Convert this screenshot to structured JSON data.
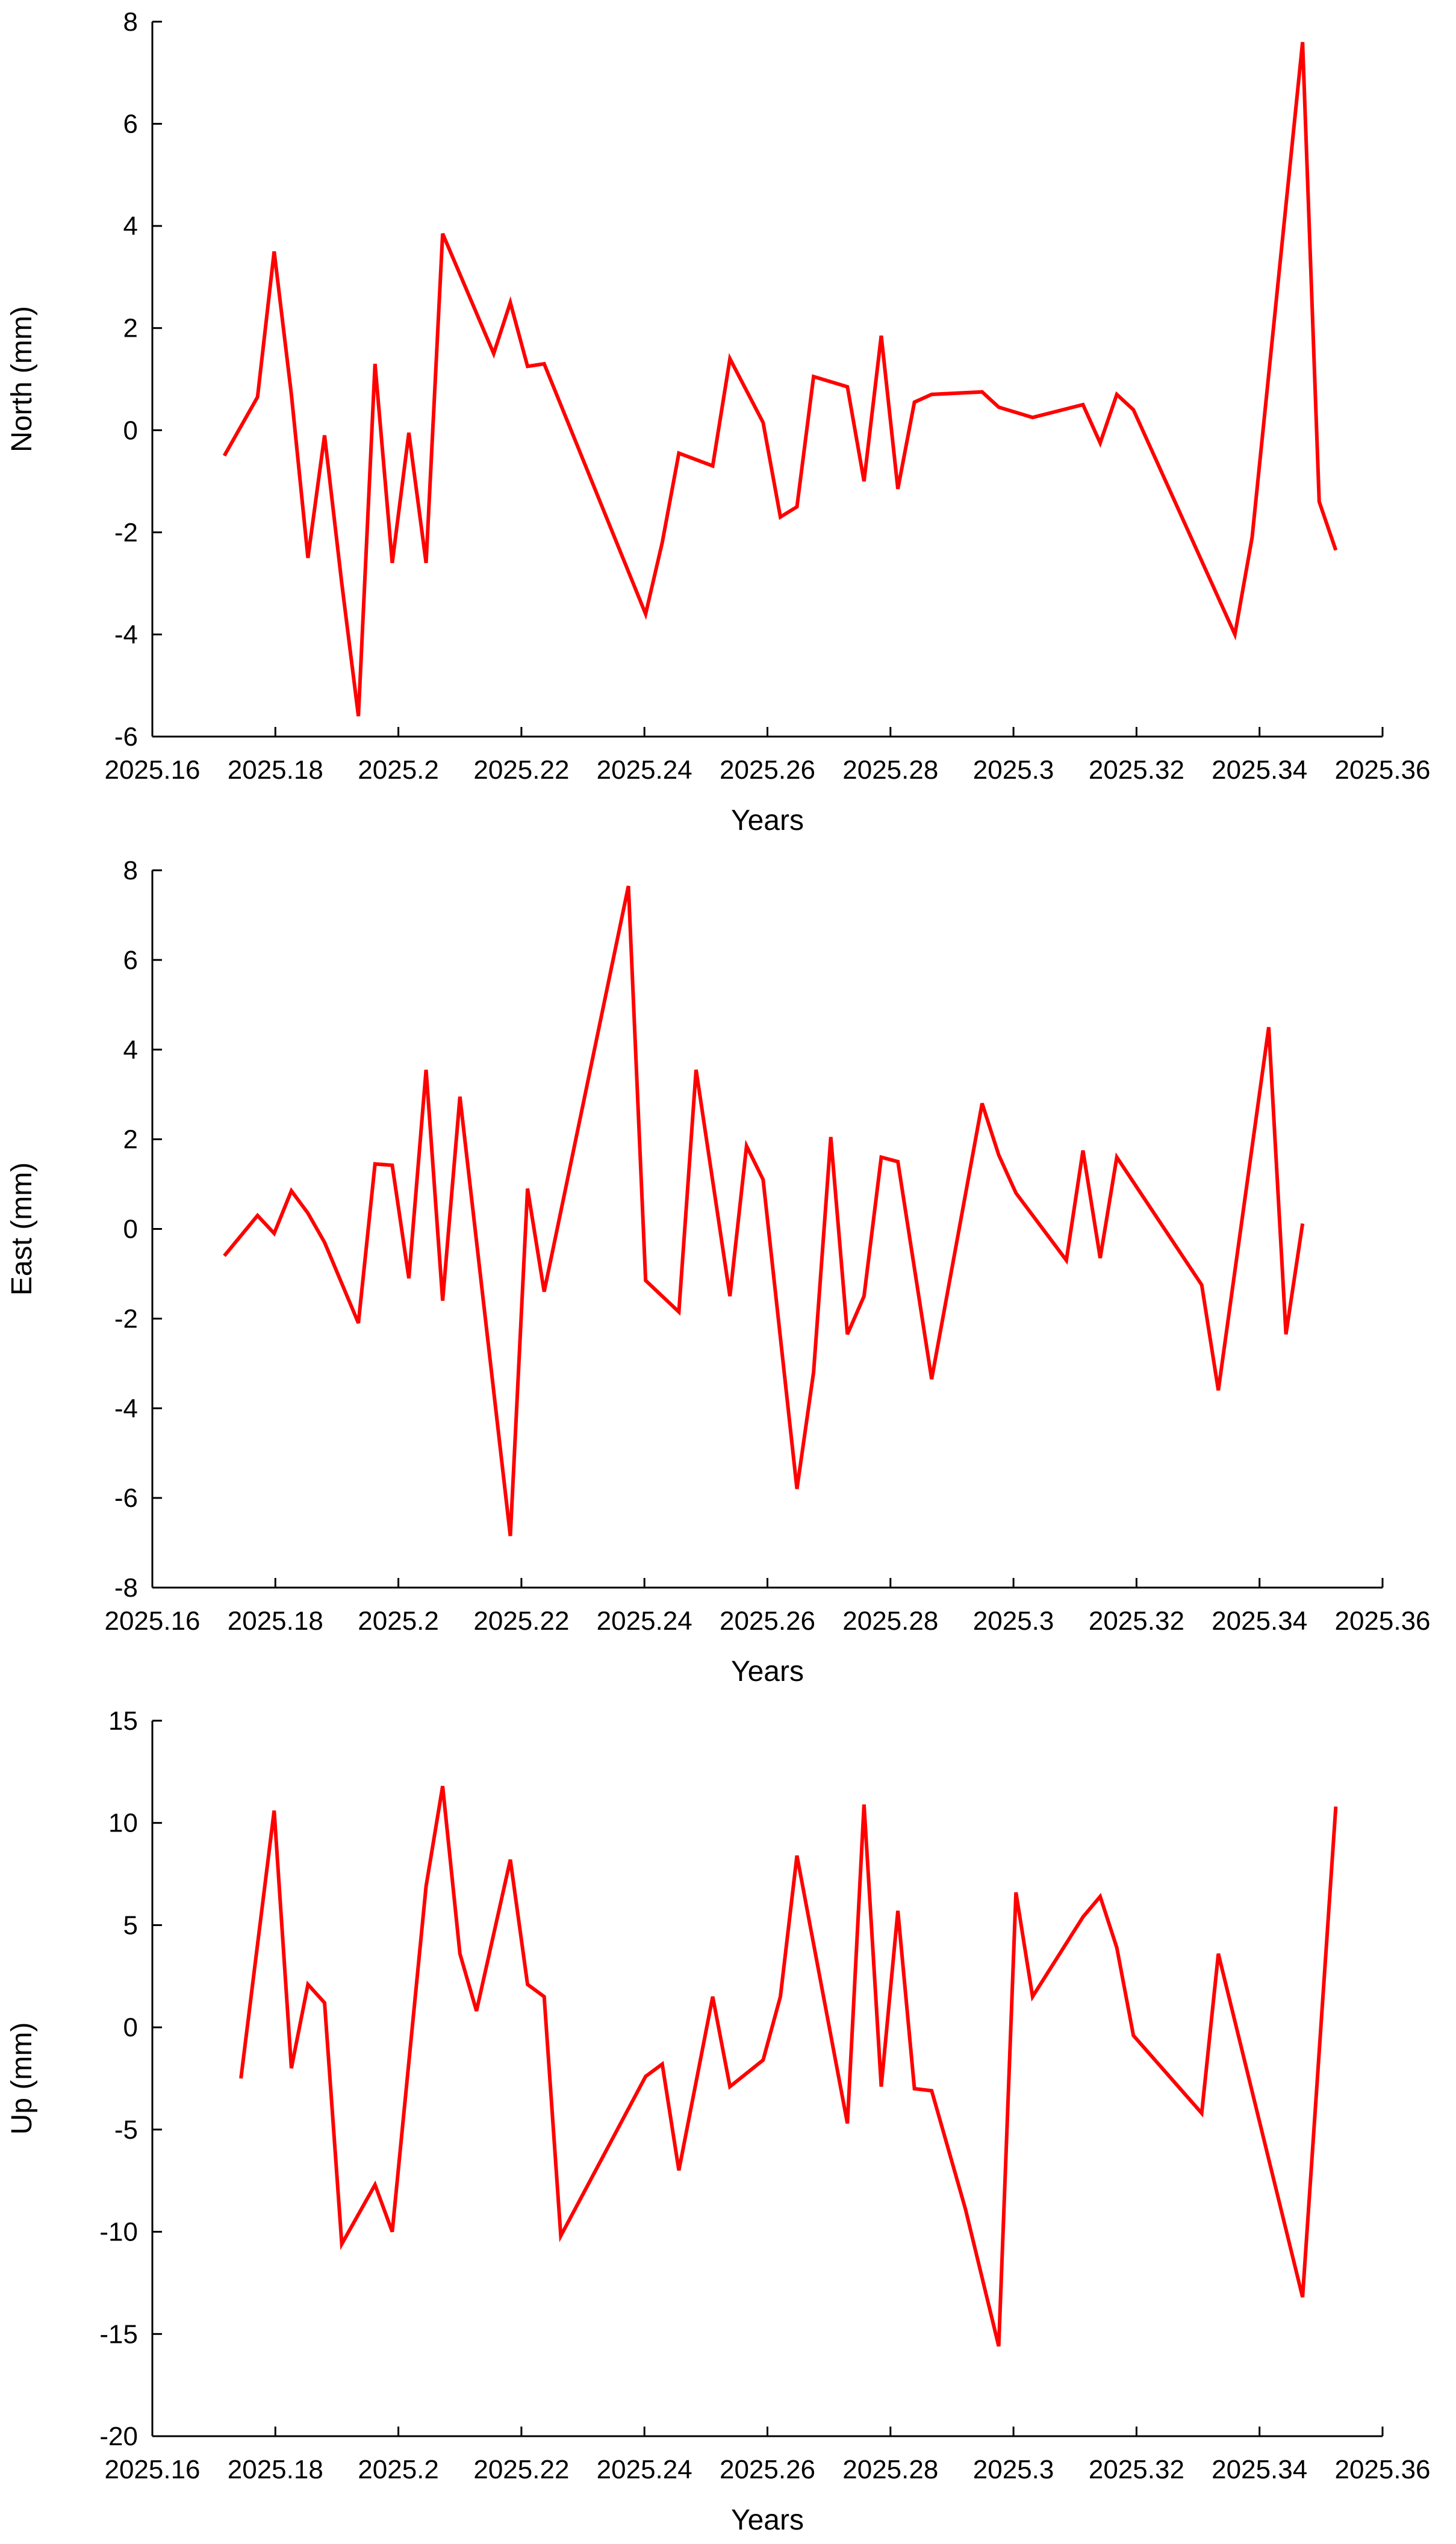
{
  "chart_data": [
    {
      "type": "line",
      "xlabel": "Years",
      "ylabel": "North (mm)",
      "xlim": [
        2025.16,
        2025.36
      ],
      "ylim": [
        -6,
        8
      ],
      "x_ticks": [
        2025.16,
        2025.18,
        2025.2,
        2025.22,
        2025.24,
        2025.26,
        2025.28,
        2025.3,
        2025.32,
        2025.34,
        2025.36
      ],
      "x_tick_labels": [
        "2025.16",
        "2025.18",
        "2025.2",
        "2025.22",
        "2025.24",
        "2025.26",
        "2025.28",
        "2025.3",
        "2025.32",
        "2025.34",
        "2025.36"
      ],
      "y_ticks": [
        -6,
        -4,
        -2,
        0,
        2,
        4,
        6,
        8
      ],
      "y_tick_labels": [
        "-6",
        "-4",
        "-2",
        "0",
        "2",
        "4",
        "6",
        "8"
      ],
      "line_color": "#ff0000",
      "series": [
        {
          "x": [
            2025.1717,
            2025.1771,
            2025.1798,
            2025.1826,
            2025.1853,
            2025.188,
            2025.1908,
            2025.1935,
            2025.1962,
            2025.199,
            2025.2017,
            2025.2045,
            2025.2072,
            2025.2155,
            2025.2182,
            2025.221,
            2025.2237,
            2025.2402,
            2025.2429,
            2025.2456,
            2025.2511,
            2025.2539,
            2025.2593,
            2025.2621,
            2025.2648,
            2025.2675,
            2025.273,
            2025.2757,
            2025.2785,
            2025.2812,
            2025.2839,
            2025.2867,
            2025.2949,
            2025.2976,
            2025.3031,
            2025.3113,
            2025.3141,
            2025.3168,
            2025.3195,
            2025.336,
            2025.3388,
            2025.347,
            2025.3497,
            2025.3524
          ],
          "y": [
            -0.5,
            0.65,
            3.5,
            0.7,
            -2.5,
            -0.1,
            -3.0,
            -5.6,
            1.3,
            -2.6,
            -0.05,
            -2.6,
            3.85,
            1.5,
            2.5,
            1.25,
            1.3,
            -3.6,
            -2.2,
            -0.45,
            -0.7,
            1.4,
            0.15,
            -1.7,
            -1.5,
            1.05,
            0.85,
            -1.0,
            1.85,
            -1.15,
            0.55,
            0.7,
            0.75,
            0.45,
            0.25,
            0.5,
            -0.25,
            0.7,
            0.4,
            -4.0,
            -2.1,
            7.6,
            -1.4,
            -2.35
          ]
        }
      ]
    },
    {
      "type": "line",
      "xlabel": "Years",
      "ylabel": "East (mm)",
      "xlim": [
        2025.16,
        2025.36
      ],
      "ylim": [
        -8,
        8
      ],
      "x_ticks": [
        2025.16,
        2025.18,
        2025.2,
        2025.22,
        2025.24,
        2025.26,
        2025.28,
        2025.3,
        2025.32,
        2025.34,
        2025.36
      ],
      "x_tick_labels": [
        "2025.16",
        "2025.18",
        "2025.2",
        "2025.22",
        "2025.24",
        "2025.26",
        "2025.28",
        "2025.3",
        "2025.32",
        "2025.34",
        "2025.36"
      ],
      "y_ticks": [
        -8,
        -6,
        -4,
        -2,
        0,
        2,
        4,
        6,
        8
      ],
      "y_tick_labels": [
        "-8",
        "-6",
        "-4",
        "-2",
        "0",
        "2",
        "4",
        "6",
        "8"
      ],
      "line_color": "#ff0000",
      "series": [
        {
          "x": [
            2025.1717,
            2025.1771,
            2025.1798,
            2025.1826,
            2025.1853,
            2025.188,
            2025.1935,
            2025.1962,
            2025.199,
            2025.2017,
            2025.2045,
            2025.2072,
            2025.21,
            2025.2182,
            2025.221,
            2025.2237,
            2025.2374,
            2025.2402,
            2025.2456,
            2025.2484,
            2025.2539,
            2025.2566,
            2025.2593,
            2025.2648,
            2025.2675,
            2025.2703,
            2025.273,
            2025.2757,
            2025.2785,
            2025.2812,
            2025.2867,
            2025.2949,
            2025.2976,
            2025.3004,
            2025.3086,
            2025.3113,
            2025.3141,
            2025.3168,
            2025.3306,
            2025.3333,
            2025.3415,
            2025.3443,
            2025.347
          ],
          "y": [
            -0.6,
            0.3,
            -0.1,
            0.85,
            0.35,
            -0.3,
            -2.1,
            1.45,
            1.42,
            -1.1,
            3.55,
            -1.6,
            2.95,
            -6.85,
            0.9,
            -1.4,
            7.65,
            -1.15,
            -1.85,
            3.55,
            -1.5,
            1.85,
            1.1,
            -5.8,
            -3.2,
            2.05,
            -2.35,
            -1.5,
            1.6,
            1.5,
            -3.35,
            2.8,
            1.65,
            0.8,
            -0.7,
            1.75,
            -0.65,
            1.6,
            -1.25,
            -3.6,
            4.5,
            -2.35,
            0.12
          ]
        }
      ]
    },
    {
      "type": "line",
      "xlabel": "Years",
      "ylabel": "Up (mm)",
      "xlim": [
        2025.16,
        2025.36
      ],
      "ylim": [
        -20,
        15
      ],
      "x_ticks": [
        2025.16,
        2025.18,
        2025.2,
        2025.22,
        2025.24,
        2025.26,
        2025.28,
        2025.3,
        2025.32,
        2025.34,
        2025.36
      ],
      "x_tick_labels": [
        "2025.16",
        "2025.18",
        "2025.2",
        "2025.22",
        "2025.24",
        "2025.26",
        "2025.28",
        "2025.3",
        "2025.32",
        "2025.34",
        "2025.36"
      ],
      "y_ticks": [
        -20,
        -15,
        -10,
        -5,
        0,
        5,
        10,
        15
      ],
      "y_tick_labels": [
        "-20",
        "-15",
        "-10",
        "-5",
        "0",
        "5",
        "10",
        "15"
      ],
      "line_color": "#ff0000",
      "series": [
        {
          "x": [
            2025.1744,
            2025.1798,
            2025.1826,
            2025.1853,
            2025.188,
            2025.1908,
            2025.1962,
            2025.199,
            2025.2045,
            2025.2072,
            2025.21,
            2025.2127,
            2025.2182,
            2025.221,
            2025.2237,
            2025.2264,
            2025.2402,
            2025.2429,
            2025.2456,
            2025.2511,
            2025.2539,
            2025.2593,
            2025.2621,
            2025.2648,
            2025.273,
            2025.2757,
            2025.2785,
            2025.2812,
            2025.2839,
            2025.2867,
            2025.2922,
            2025.2976,
            2025.3004,
            2025.3031,
            2025.3113,
            2025.3141,
            2025.3168,
            2025.3195,
            2025.3306,
            2025.3333,
            2025.347,
            2025.3524
          ],
          "y": [
            -2.5,
            10.6,
            -2.0,
            2.1,
            1.2,
            -10.6,
            -7.7,
            -10.0,
            6.9,
            11.8,
            3.6,
            0.8,
            8.2,
            2.1,
            1.5,
            -10.2,
            -2.4,
            -1.8,
            -7.0,
            1.5,
            -2.9,
            -1.6,
            1.5,
            8.4,
            -4.7,
            10.9,
            -2.9,
            5.7,
            -3.0,
            -3.1,
            -8.9,
            -15.6,
            6.6,
            1.5,
            5.4,
            6.4,
            3.9,
            -0.4,
            -4.2,
            3.6,
            -13.2,
            10.8
          ]
        }
      ]
    }
  ]
}
